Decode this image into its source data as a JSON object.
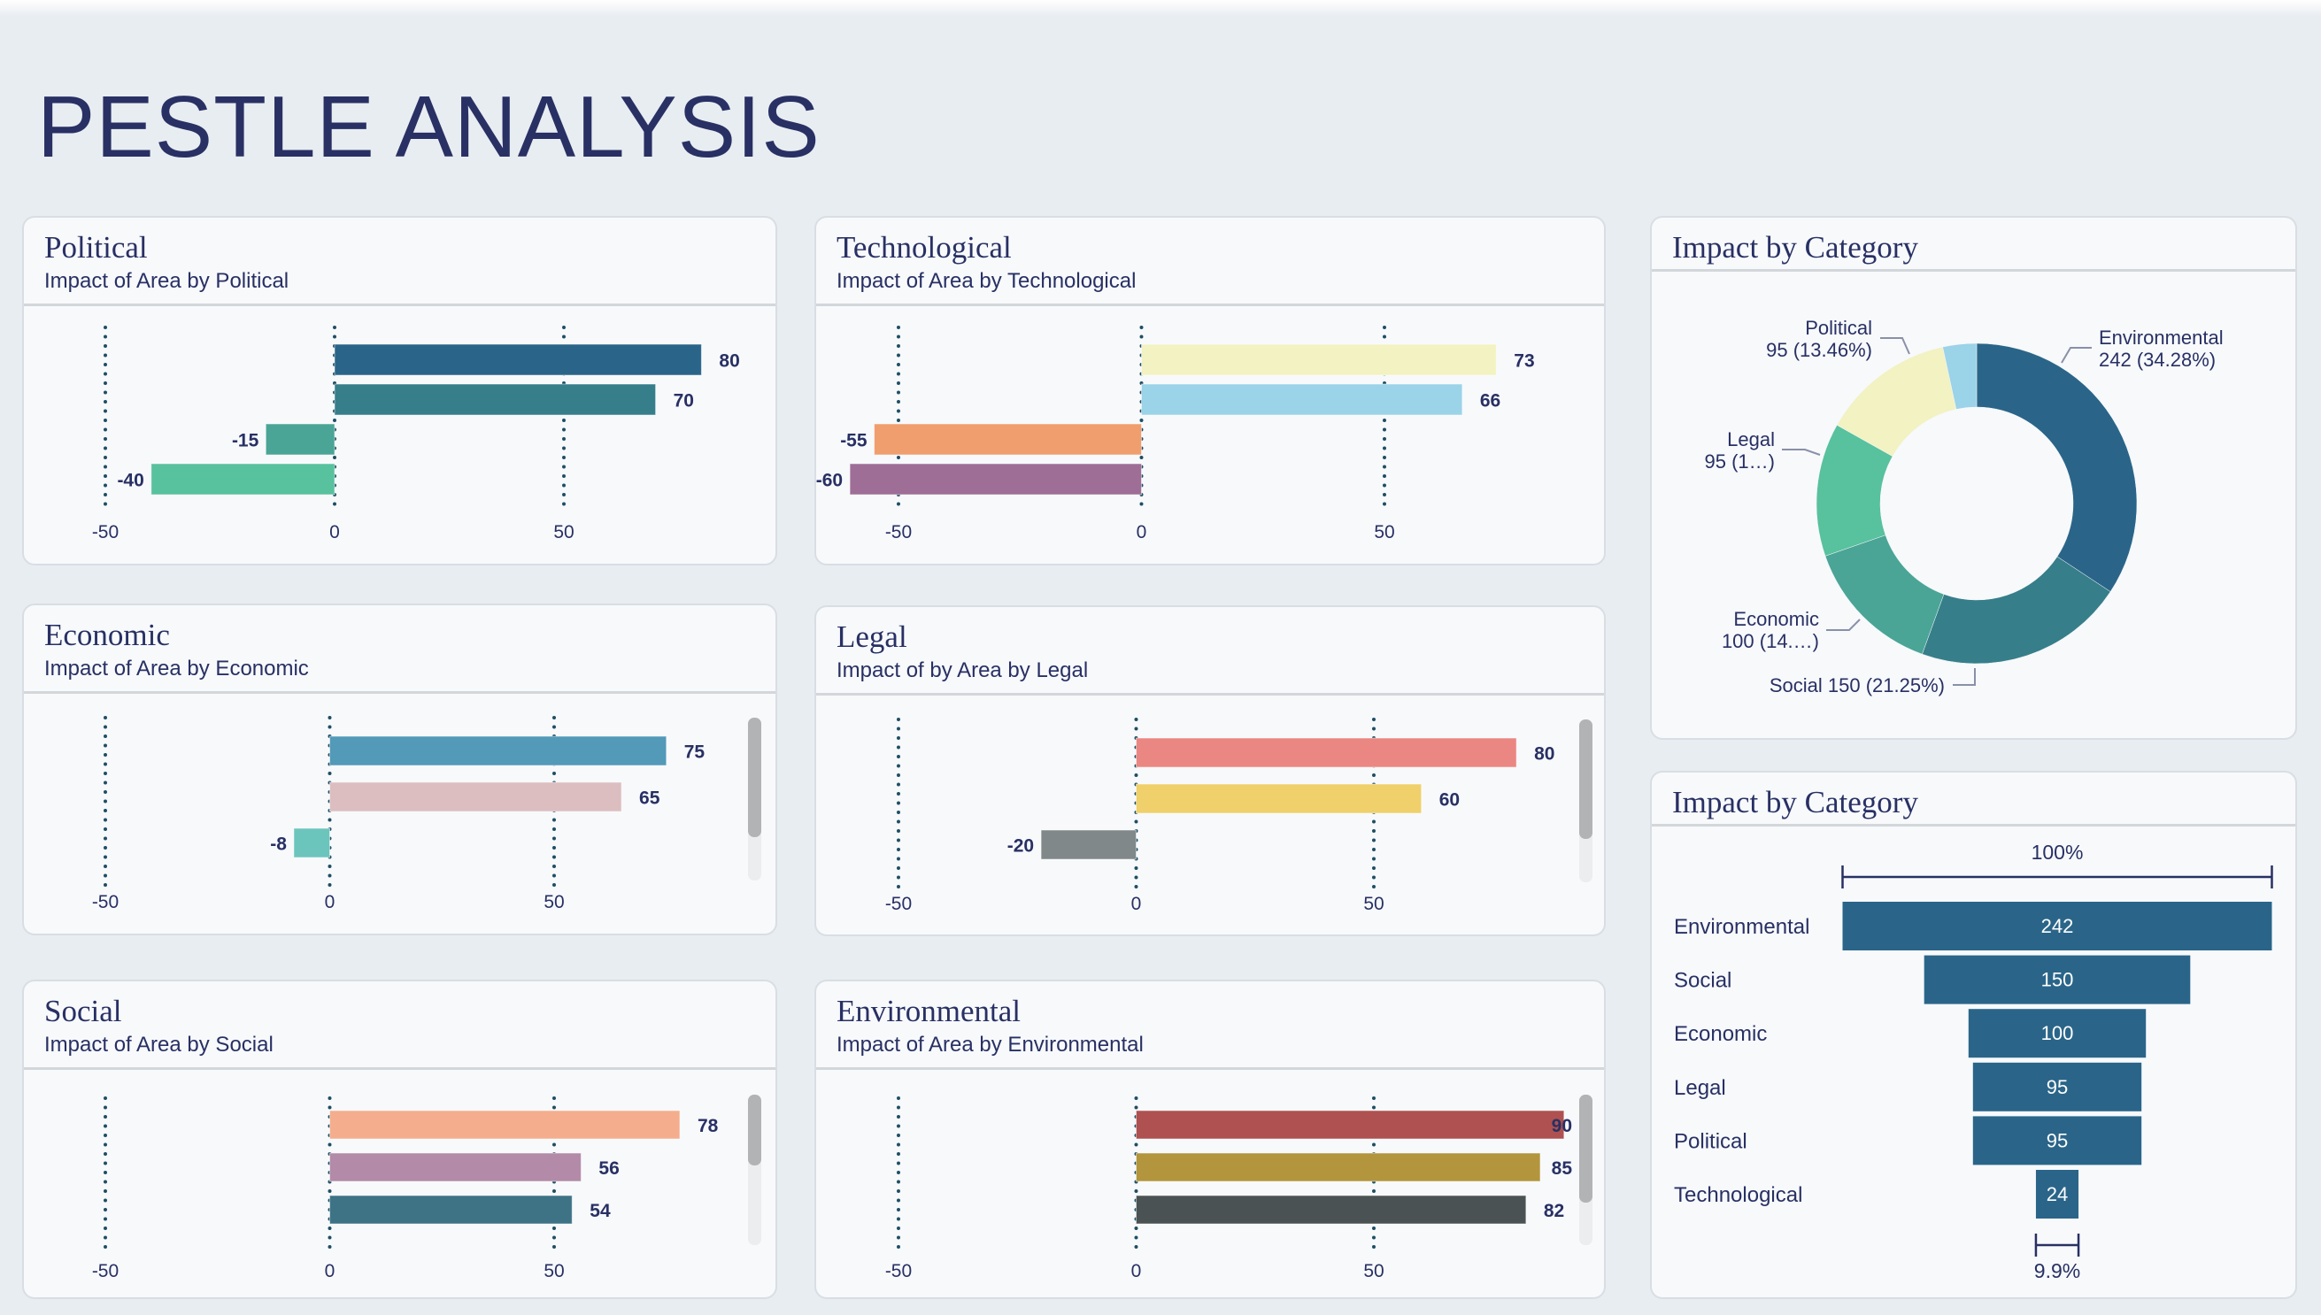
{
  "page": {
    "title": "PESTLE ANALYSIS"
  },
  "chart_data": [
    {
      "type": "bar",
      "orientation": "horizontal",
      "title": "Political",
      "subtitle": "Impact of Area by Political",
      "values": [
        80,
        70,
        -15,
        -40
      ],
      "colors": [
        "#2a6589",
        "#367e8a",
        "#4aa596",
        "#58c19e"
      ],
      "xticks": [
        -50,
        0,
        50
      ],
      "grid": true,
      "scrollbar": false
    },
    {
      "type": "bar",
      "orientation": "horizontal",
      "title": "Technological",
      "subtitle": "Impact of Area by Technological",
      "values": [
        73,
        66,
        -55,
        -60
      ],
      "colors": [
        "#f2f2c2",
        "#9bd3e8",
        "#f09e6e",
        "#9e6e96"
      ],
      "xticks": [
        -50,
        0,
        50
      ],
      "grid": true,
      "scrollbar": false
    },
    {
      "type": "bar",
      "orientation": "horizontal",
      "title": "Economic",
      "subtitle": "Impact of Area by Economic",
      "values": [
        75,
        65,
        -8
      ],
      "colors": [
        "#5399b8",
        "#dcbec0",
        "#6cc5bd"
      ],
      "xticks": [
        -50,
        0,
        50
      ],
      "grid": true,
      "scrollbar": true
    },
    {
      "type": "bar",
      "orientation": "horizontal",
      "title": "Legal",
      "subtitle": "Impact of by Area by Legal",
      "values": [
        80,
        60,
        -20
      ],
      "colors": [
        "#ea8782",
        "#efd06a",
        "#808889"
      ],
      "xticks": [
        -50,
        0,
        50
      ],
      "grid": true,
      "scrollbar": true
    },
    {
      "type": "bar",
      "orientation": "horizontal",
      "title": "Social",
      "subtitle": "Impact of Area by Social",
      "values": [
        78,
        56,
        54
      ],
      "colors": [
        "#f4ae8d",
        "#b38aa8",
        "#3e7386"
      ],
      "xticks": [
        -50,
        0,
        50
      ],
      "grid": true,
      "scrollbar": true
    },
    {
      "type": "bar",
      "orientation": "horizontal",
      "title": "Environmental",
      "subtitle": "Impact of Area by Environmental",
      "values": [
        90,
        85,
        82
      ],
      "colors": [
        "#ae5150",
        "#b2953c",
        "#4a5253"
      ],
      "xticks": [
        -50,
        0,
        50
      ],
      "grid": true,
      "scrollbar": true
    },
    {
      "type": "pie",
      "style": "donut",
      "title": "Impact by Category",
      "categories": [
        "Environmental",
        "Social",
        "Economic",
        "Legal",
        "Political",
        "Technological"
      ],
      "values": [
        242,
        150,
        100,
        95,
        95,
        24
      ],
      "colors": [
        "#2a6589",
        "#367e8a",
        "#4aa596",
        "#58c19e",
        "#f2f2c2",
        "#9bd3e8"
      ],
      "labels": [
        {
          "category": "Environmental",
          "lines": [
            "Environmental",
            "242 (34.28%)"
          ]
        },
        {
          "category": "Political",
          "lines": [
            "Political",
            "95 (13.46%)"
          ]
        },
        {
          "category": "Legal",
          "lines": [
            "Legal",
            "95 (1…)"
          ]
        },
        {
          "category": "Economic",
          "lines": [
            "Economic",
            "100 (14.…)"
          ]
        },
        {
          "category": "Social",
          "lines": [
            "Social 150 (21.25%)"
          ]
        }
      ]
    },
    {
      "type": "funnel",
      "title": "Impact by Category",
      "categories": [
        "Environmental",
        "Social",
        "Economic",
        "Legal",
        "Political",
        "Technological"
      ],
      "values": [
        242,
        150,
        100,
        95,
        95,
        24
      ],
      "color": "#2a6589",
      "top_label": "100%",
      "bottom_label": "9.9%"
    }
  ]
}
